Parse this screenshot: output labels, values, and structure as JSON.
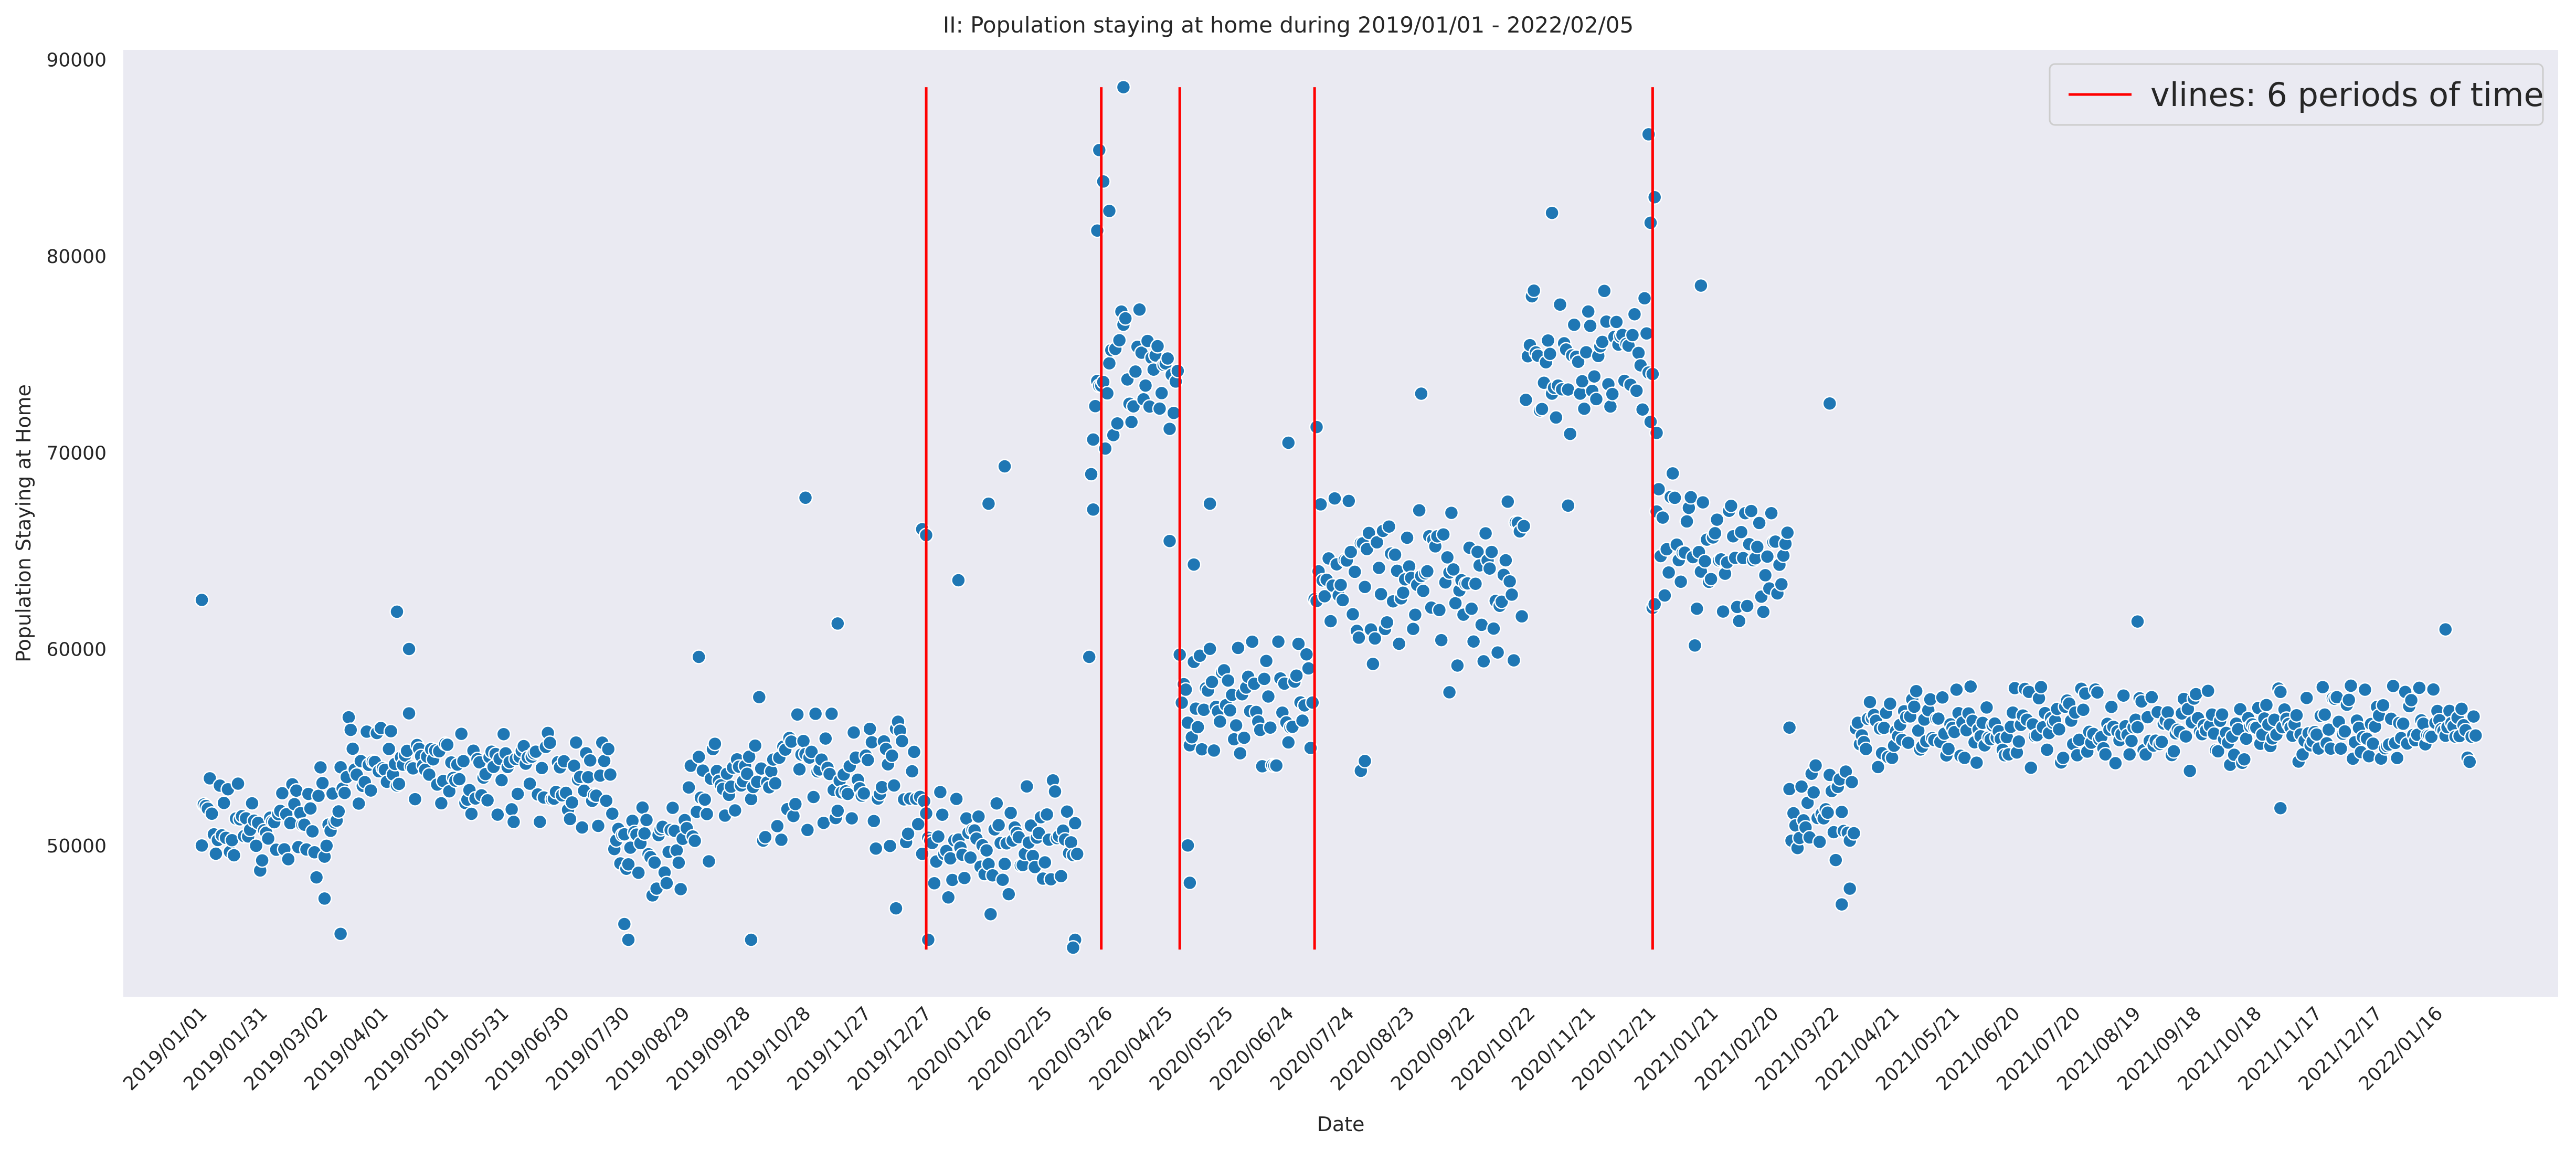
{
  "chart_data": {
    "type": "scatter",
    "title": "II: Population staying at home during 2019/01/01 - 2022/02/05",
    "xlabel": "Date",
    "ylabel": "Population Staying at Home",
    "x_range": [
      "2018/11/23",
      "2022/03/17"
    ],
    "ylim": [
      42300,
      90500
    ],
    "yticks": [
      50000,
      60000,
      70000,
      80000,
      90000
    ],
    "xticks": [
      "2019/01/01",
      "2019/01/31",
      "2019/03/02",
      "2019/04/01",
      "2019/05/01",
      "2019/05/31",
      "2019/06/30",
      "2019/07/30",
      "2019/08/29",
      "2019/09/28",
      "2019/10/28",
      "2019/11/27",
      "2019/12/27",
      "2020/01/26",
      "2020/02/25",
      "2020/03/26",
      "2020/04/25",
      "2020/05/25",
      "2020/06/24",
      "2020/07/24",
      "2020/08/23",
      "2020/09/22",
      "2020/10/22",
      "2020/11/21",
      "2020/12/21",
      "2021/01/21",
      "2021/02/20",
      "2021/03/22",
      "2021/04/21",
      "2021/05/21",
      "2021/06/20",
      "2021/07/20",
      "2021/08/19",
      "2021/09/18",
      "2021/10/18",
      "2021/11/17",
      "2021/12/17",
      "2022/01/16"
    ],
    "grid": false,
    "legend": {
      "placement": "top-right",
      "entries": [
        "vlines: 6 periods of time"
      ]
    },
    "background": "#eaeaf2",
    "marker_color": "#1f77b4",
    "vline_color": "#ff0000",
    "vlines": [
      {
        "date": "2019/12/27",
        "ymin": 44700,
        "ymax": 88600
      },
      {
        "date": "2020/03/23",
        "ymin": 44700,
        "ymax": 88600
      },
      {
        "date": "2020/05/01",
        "ymin": 44700,
        "ymax": 88600
      },
      {
        "date": "2020/07/07",
        "ymin": 44700,
        "ymax": 88600
      },
      {
        "date": "2020/12/22",
        "ymin": 44700,
        "ymax": 88600
      }
    ],
    "series": [
      {
        "segments": [
          {
            "start": "2019/01/01",
            "end": "2019/03/11",
            "base": 51000,
            "amp": 2600,
            "outliers": [
              [
                "2019/01/01",
                62500
              ],
              [
                "2019/03/11",
                45500
              ],
              [
                "2019/03/03",
                47300
              ]
            ]
          },
          {
            "start": "2019/03/11",
            "end": "2019/04/21",
            "base": 54300,
            "amp": 2200,
            "outliers": [
              [
                "2019/04/08",
                61900
              ],
              [
                "2019/04/14",
                60000
              ]
            ]
          },
          {
            "start": "2019/04/21",
            "end": "2019/07/25",
            "base": 53600,
            "amp": 2100,
            "outliers": []
          },
          {
            "start": "2019/07/25",
            "end": "2019/08/31",
            "base": 49800,
            "amp": 2200,
            "outliers": [
              [
                "2019/07/30",
                46000
              ],
              [
                "2019/08/01",
                45200
              ],
              [
                "2019/09/05",
                59600
              ]
            ]
          },
          {
            "start": "2019/08/31",
            "end": "2019/12/27",
            "base": 53200,
            "amp": 3300,
            "outliers": [
              [
                "2019/10/28",
                67700
              ],
              [
                "2019/10/01",
                45200
              ],
              [
                "2019/11/13",
                61300
              ],
              [
                "2019/12/25",
                66100
              ],
              [
                "2019/12/27",
                65800
              ],
              [
                "2019/12/12",
                46800
              ]
            ]
          },
          {
            "start": "2019/12/27",
            "end": "2020/03/12",
            "base": 50300,
            "amp": 2800,
            "outliers": [
              [
                "2019/12/28",
                45200
              ],
              [
                "2020/01/27",
                67400
              ],
              [
                "2020/02/04",
                69300
              ],
              [
                "2020/01/12",
                63500
              ],
              [
                "2020/03/10",
                45200
              ],
              [
                "2020/03/09",
                44800
              ],
              [
                "2020/03/17",
                59600
              ],
              [
                "2020/03/18",
                68900
              ],
              [
                "2020/03/19",
                67100
              ]
            ]
          },
          {
            "start": "2020/03/19",
            "end": "2020/05/01",
            "base": 73800,
            "amp": 3300,
            "outliers": [
              [
                "2020/03/22",
                85400
              ],
              [
                "2020/03/21",
                81300
              ],
              [
                "2020/03/24",
                83800
              ],
              [
                "2020/04/03",
                88600
              ],
              [
                "2020/03/27",
                82300
              ],
              [
                "2020/04/26",
                65500
              ]
            ]
          },
          {
            "start": "2020/05/01",
            "end": "2020/07/07",
            "base": 57200,
            "amp": 3600,
            "outliers": [
              [
                "2020/05/06",
                48100
              ],
              [
                "2020/05/05",
                50000
              ],
              [
                "2020/06/24",
                70500
              ],
              [
                "2020/05/08",
                64300
              ],
              [
                "2020/05/16",
                67400
              ]
            ]
          },
          {
            "start": "2020/07/07",
            "end": "2020/10/20",
            "base": 63700,
            "amp": 3600,
            "outliers": [
              [
                "2020/07/08",
                71300
              ],
              [
                "2020/08/29",
                73000
              ],
              [
                "2020/07/30",
                53800
              ],
              [
                "2020/08/01",
                54300
              ],
              [
                "2020/09/12",
                57800
              ]
            ]
          },
          {
            "start": "2020/10/20",
            "end": "2020/12/22",
            "base": 74500,
            "amp": 3300,
            "outliers": [
              [
                "2020/11/02",
                82200
              ],
              [
                "2020/12/20",
                86200
              ],
              [
                "2020/12/21",
                81700
              ],
              [
                "2020/12/23",
                83000
              ],
              [
                "2020/12/22",
                74000
              ],
              [
                "2020/11/10",
                67300
              ]
            ]
          },
          {
            "start": "2020/12/22",
            "end": "2021/02/28",
            "base": 65000,
            "amp": 3400,
            "outliers": [
              [
                "2021/01/15",
                78500
              ],
              [
                "2020/12/24",
                71000
              ],
              [
                "2021/02/28",
                56000
              ]
            ]
          },
          {
            "start": "2021/02/28",
            "end": "2021/04/02",
            "base": 51600,
            "amp": 2300,
            "outliers": [
              [
                "2021/03/20",
                72500
              ],
              [
                "2021/03/26",
                47000
              ],
              [
                "2021/03/30",
                47800
              ]
            ]
          },
          {
            "start": "2021/04/02",
            "end": "2022/02/05",
            "base": 56000,
            "amp": 1800,
            "outliers": [
              [
                "2021/10/30",
                51900
              ],
              [
                "2021/08/20",
                61400
              ],
              [
                "2022/01/20",
                61000
              ]
            ]
          }
        ]
      }
    ]
  }
}
